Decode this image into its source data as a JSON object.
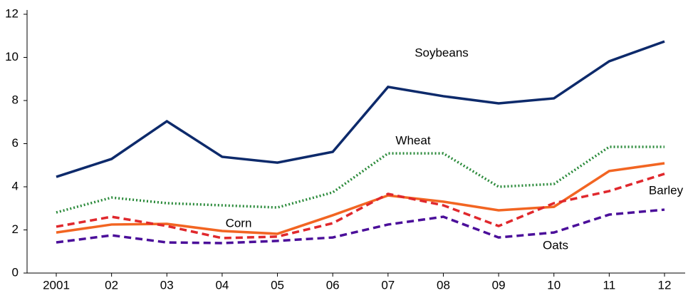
{
  "chart_data": {
    "type": "line",
    "categories": [
      "2001",
      "02",
      "03",
      "04",
      "05",
      "06",
      "07",
      "08",
      "09",
      "10",
      "11",
      "12"
    ],
    "series": [
      {
        "name": "Soybeans",
        "color": "#0d2a6b",
        "dash": "solid",
        "values": [
          4.46,
          5.29,
          7.04,
          5.39,
          5.12,
          5.62,
          8.63,
          8.2,
          7.87,
          8.1,
          9.82,
          10.74
        ]
      },
      {
        "name": "Wheat",
        "color": "#2a8a3a",
        "dash": "dotted",
        "values": [
          2.81,
          3.5,
          3.24,
          3.14,
          3.04,
          3.74,
          5.55,
          5.55,
          4.0,
          4.13,
          5.85,
          5.85
        ]
      },
      {
        "name": "Corn",
        "color": "#f26522",
        "dash": "solid",
        "values": [
          1.88,
          2.25,
          2.28,
          1.95,
          1.82,
          2.68,
          3.6,
          3.31,
          2.91,
          3.07,
          4.73,
          5.09
        ]
      },
      {
        "name": "Barley",
        "color": "#e0282d",
        "dash": "dashed",
        "values": [
          2.15,
          2.61,
          2.18,
          1.62,
          1.69,
          2.31,
          3.67,
          3.14,
          2.18,
          3.24,
          3.8,
          4.6
        ]
      },
      {
        "name": "Oats",
        "color": "#4b0f9a",
        "dash": "dashed",
        "values": [
          1.42,
          1.75,
          1.42,
          1.39,
          1.49,
          1.65,
          2.25,
          2.61,
          1.65,
          1.88,
          2.71,
          2.94
        ]
      }
    ],
    "ylim": [
      0,
      12
    ],
    "yticks": [
      0,
      2,
      4,
      6,
      8,
      10,
      12
    ],
    "grid": false
  }
}
